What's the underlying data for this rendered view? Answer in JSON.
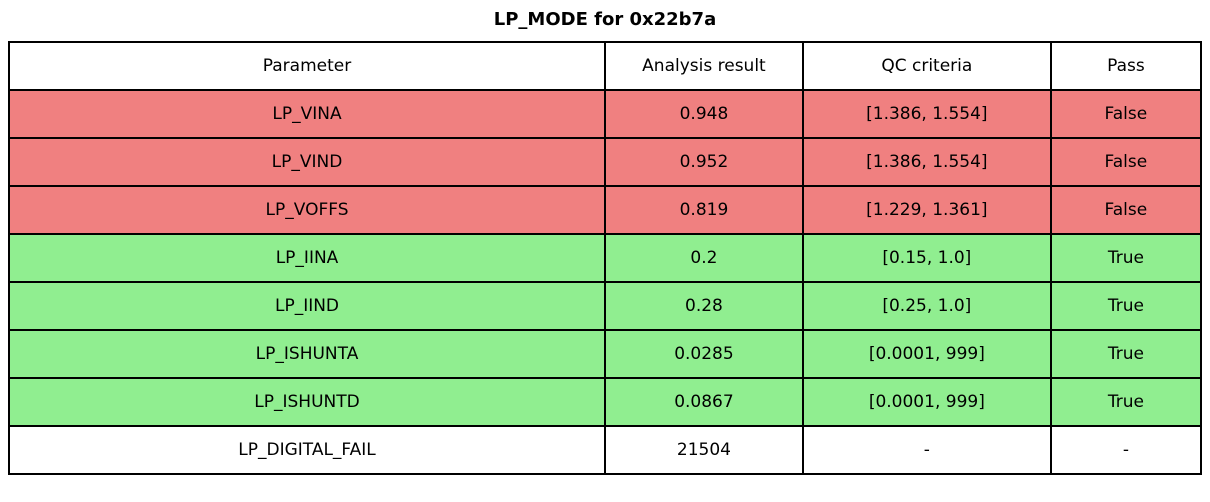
{
  "title": "LP_MODE for 0x22b7a",
  "colors": {
    "fail_row": "#f08080",
    "pass_row": "#90ee90",
    "neutral_row": "#ffffff",
    "border": "#000000",
    "text": "#000000"
  },
  "chart_data": {
    "type": "table",
    "title": "LP_MODE for 0x22b7a",
    "columns": [
      "Parameter",
      "Analysis result",
      "QC criteria",
      "Pass"
    ],
    "rows": [
      {
        "parameter": "LP_VINA",
        "analysis_result": "0.948",
        "qc_criteria": "[1.386, 1.554]",
        "pass": "False",
        "status": "fail"
      },
      {
        "parameter": "LP_VIND",
        "analysis_result": "0.952",
        "qc_criteria": "[1.386, 1.554]",
        "pass": "False",
        "status": "fail"
      },
      {
        "parameter": "LP_VOFFS",
        "analysis_result": "0.819",
        "qc_criteria": "[1.229, 1.361]",
        "pass": "False",
        "status": "fail"
      },
      {
        "parameter": "LP_IINA",
        "analysis_result": "0.2",
        "qc_criteria": "[0.15, 1.0]",
        "pass": "True",
        "status": "pass"
      },
      {
        "parameter": "LP_IIND",
        "analysis_result": "0.28",
        "qc_criteria": "[0.25, 1.0]",
        "pass": "True",
        "status": "pass"
      },
      {
        "parameter": "LP_ISHUNTA",
        "analysis_result": "0.0285",
        "qc_criteria": "[0.0001, 999]",
        "pass": "True",
        "status": "pass"
      },
      {
        "parameter": "LP_ISHUNTD",
        "analysis_result": "0.0867",
        "qc_criteria": "[0.0001, 999]",
        "pass": "True",
        "status": "pass"
      },
      {
        "parameter": "LP_DIGITAL_FAIL",
        "analysis_result": "21504",
        "qc_criteria": "-",
        "pass": "-",
        "status": "none"
      }
    ]
  }
}
